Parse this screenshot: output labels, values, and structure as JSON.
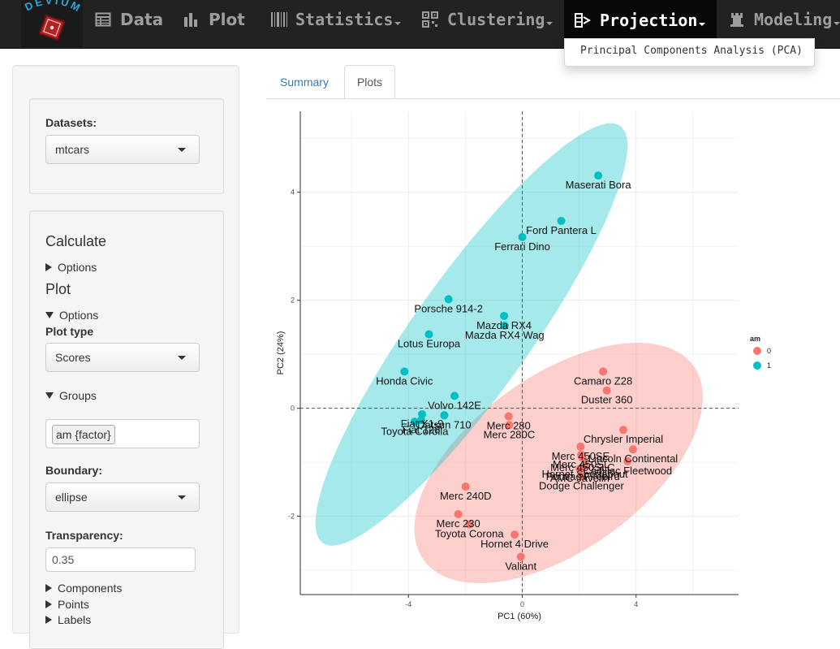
{
  "navbar": {
    "logo_text": "DEVIUM",
    "items": [
      {
        "label": "Data",
        "icon": "table-icon"
      },
      {
        "label": "Plot",
        "icon": "bar-chart-icon"
      },
      {
        "label": "Statistics",
        "icon": "barcode-icon"
      },
      {
        "label": "Clustering",
        "icon": "qrcode-icon"
      },
      {
        "label": "Projection",
        "icon": "projection-icon"
      },
      {
        "label": "Modeling",
        "icon": "tower-icon"
      }
    ],
    "active": "Projection",
    "dropdown_item": "Principal Components Analysis (PCA)"
  },
  "sidebar": {
    "datasets_label": "Datasets:",
    "dataset_value": "mtcars",
    "calculate_heading": "Calculate",
    "calc_options": "Options",
    "plot_heading": "Plot",
    "plot_options": "Options",
    "plot_type_label": "Plot type",
    "plot_type_value": "Scores",
    "groups_toggle": "Groups",
    "groups_tag": "am {factor}",
    "boundary_label": "Boundary:",
    "boundary_value": "ellipse",
    "transparency_label": "Transparency:",
    "transparency_value": "0.35",
    "components_toggle": "Components",
    "points_toggle": "Points",
    "labels_toggle": "Labels"
  },
  "tabs": [
    {
      "label": "Summary",
      "active": false
    },
    {
      "label": "Plots",
      "active": true
    }
  ],
  "chart_data": {
    "type": "scatter",
    "xlabel": "PC1 (60%)",
    "ylabel": "PC2 (24%)",
    "xlim": [
      -7.8,
      7.6
    ],
    "ylim": [
      -3.45,
      5.5
    ],
    "xticks": [
      -4,
      0,
      4
    ],
    "yticks": [
      -2,
      0,
      2,
      4
    ],
    "legend": {
      "title": "am",
      "entries": [
        "0",
        "1"
      ],
      "placement": "right"
    },
    "colors": {
      "0": "#f8766d",
      "1": "#00bfc4"
    },
    "boundary": "ellipse",
    "transparency": 0.35,
    "points": [
      {
        "name": "Maserati Bora",
        "x": 2.67,
        "y": 4.31,
        "group": "1"
      },
      {
        "name": "Ford Pantera L",
        "x": 1.37,
        "y": 3.47,
        "group": "1"
      },
      {
        "name": "Ferrari Dino",
        "x": 0.0,
        "y": 3.17,
        "group": "1"
      },
      {
        "name": "Porsche 914-2",
        "x": -2.59,
        "y": 2.02,
        "group": "1"
      },
      {
        "name": "Mazda RX4",
        "x": -0.64,
        "y": 1.71,
        "group": "1"
      },
      {
        "name": "Mazda RX4 Wag",
        "x": -0.62,
        "y": 1.53,
        "group": "1"
      },
      {
        "name": "Lotus Europa",
        "x": -3.28,
        "y": 1.37,
        "group": "1"
      },
      {
        "name": "Honda Civic",
        "x": -4.14,
        "y": 0.68,
        "group": "1"
      },
      {
        "name": "Volvo 142E",
        "x": -2.38,
        "y": 0.23,
        "group": "1"
      },
      {
        "name": "Datsun 710",
        "x": -2.74,
        "y": -0.13,
        "group": "1"
      },
      {
        "name": "Fiat X1-9",
        "x": -3.52,
        "y": -0.11,
        "group": "1"
      },
      {
        "name": "Fiat 128",
        "x": -3.55,
        "y": -0.22,
        "group": "1"
      },
      {
        "name": "Toyota Corolla",
        "x": -3.78,
        "y": -0.25,
        "group": "1"
      },
      {
        "name": "Camaro Z28",
        "x": 2.84,
        "y": 0.68,
        "group": "0"
      },
      {
        "name": "Duster 360",
        "x": 2.97,
        "y": 0.33,
        "group": "0"
      },
      {
        "name": "Merc 280",
        "x": -0.48,
        "y": -0.15,
        "group": "0"
      },
      {
        "name": "Merc 280C",
        "x": -0.46,
        "y": -0.31,
        "group": "0"
      },
      {
        "name": "Chrysler Imperial",
        "x": 3.55,
        "y": -0.4,
        "group": "0"
      },
      {
        "name": "Lincoln Continental",
        "x": 3.89,
        "y": -0.76,
        "group": "0"
      },
      {
        "name": "Cadillac Fleetwood",
        "x": 3.7,
        "y": -0.98,
        "group": "0"
      },
      {
        "name": "Merc 450SE",
        "x": 2.05,
        "y": -0.71,
        "group": "0"
      },
      {
        "name": "Merc 450SL",
        "x": 2.07,
        "y": -0.86,
        "group": "0"
      },
      {
        "name": "Merc 450SLC",
        "x": 2.12,
        "y": -0.92,
        "group": "0"
      },
      {
        "name": "Hornet Sportabout",
        "x": 2.2,
        "y": -1.04,
        "group": "0"
      },
      {
        "name": "Pontiac Firebird",
        "x": 2.13,
        "y": -1.09,
        "group": "0"
      },
      {
        "name": "AMC Javelin",
        "x": 2.02,
        "y": -1.12,
        "group": "0"
      },
      {
        "name": "Dodge Challenger",
        "x": 2.08,
        "y": -1.26,
        "group": "0"
      },
      {
        "name": "Merc 240D",
        "x": -1.99,
        "y": -1.45,
        "group": "0"
      },
      {
        "name": "Merc 230",
        "x": -2.25,
        "y": -1.96,
        "group": "0"
      },
      {
        "name": "Toyota Corona",
        "x": -1.86,
        "y": -2.15,
        "group": "0"
      },
      {
        "name": "Hornet 4 Drive",
        "x": -0.27,
        "y": -2.34,
        "group": "0"
      },
      {
        "name": "Valiant",
        "x": -0.05,
        "y": -2.75,
        "group": "0"
      }
    ]
  }
}
